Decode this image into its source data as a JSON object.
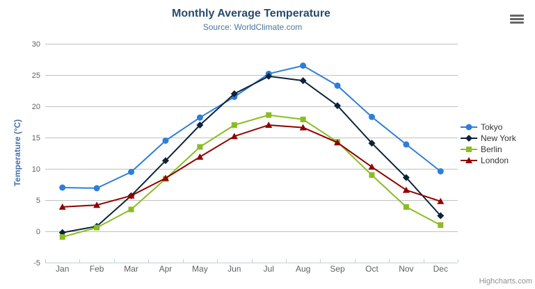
{
  "header": {
    "title": "Monthly Average Temperature",
    "subtitle": "Source: WorldClimate.com"
  },
  "credits": "Highcharts.com",
  "menu_icon": "hamburger-icon",
  "palette": {
    "title": "#274b6d",
    "subtitle": "#4d759e",
    "axis_label": "#606060",
    "yaxis_title": "#4572a7",
    "gridline": "#c0c0c0",
    "axis_line": "#c0d0e0",
    "tick": "#c0d0e0",
    "legend_text": "#333333",
    "credits": "#909090",
    "menu_icon": "#666666",
    "background": "#ffffff"
  },
  "chart_data": {
    "type": "line",
    "title": "Monthly Average Temperature",
    "subtitle": "Source: WorldClimate.com",
    "categories": [
      "Jan",
      "Feb",
      "Mar",
      "Apr",
      "May",
      "Jun",
      "Jul",
      "Aug",
      "Sep",
      "Oct",
      "Nov",
      "Dec"
    ],
    "series": [
      {
        "name": "Tokyo",
        "color": "#2f7ed8",
        "marker": "circle",
        "values": [
          7.0,
          6.9,
          9.5,
          14.5,
          18.2,
          21.5,
          25.2,
          26.5,
          23.3,
          18.3,
          13.9,
          9.6
        ]
      },
      {
        "name": "New York",
        "color": "#0d233a",
        "marker": "diamond",
        "values": [
          -0.2,
          0.8,
          5.7,
          11.3,
          17.0,
          22.0,
          24.8,
          24.1,
          20.1,
          14.1,
          8.6,
          2.5
        ]
      },
      {
        "name": "Berlin",
        "color": "#8bbc21",
        "marker": "square",
        "values": [
          -0.9,
          0.6,
          3.5,
          8.4,
          13.5,
          17.0,
          18.6,
          17.9,
          14.3,
          9.0,
          3.9,
          1.0
        ]
      },
      {
        "name": "London",
        "color": "#910000",
        "marker": "triangle",
        "values": [
          3.9,
          4.2,
          5.7,
          8.5,
          11.9,
          15.2,
          17.0,
          16.6,
          14.2,
          10.3,
          6.6,
          4.8
        ]
      }
    ],
    "xlabel": "",
    "ylabel": "Temperature (°C)",
    "ylim": [
      -5,
      30
    ],
    "ytick_step": 5,
    "grid": true,
    "legend_position": "right"
  }
}
